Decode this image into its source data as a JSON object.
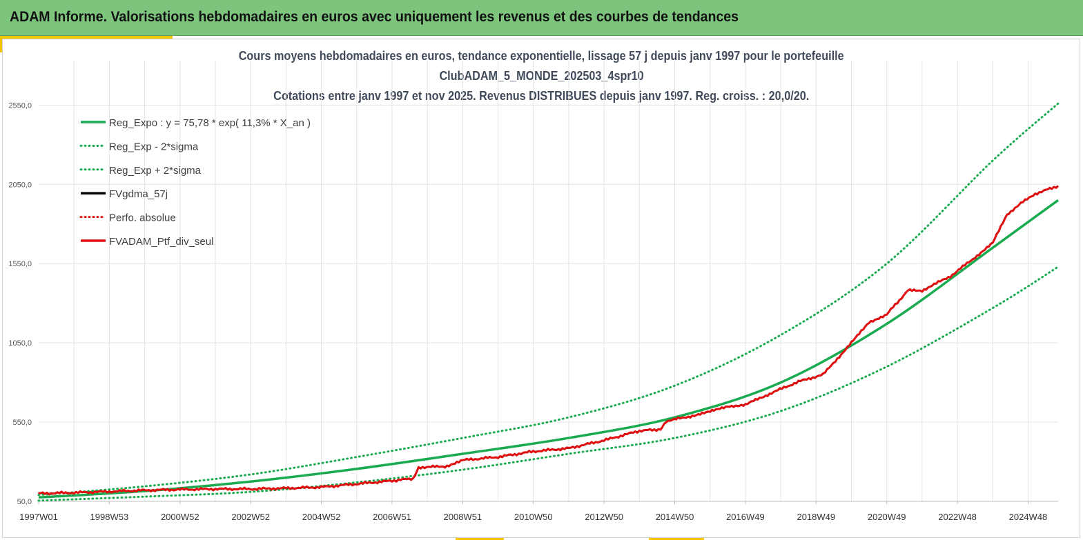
{
  "header": {
    "title": "ADAM Informe. Valorisations hebdomadaires en euros avec uniquement les revenus et des courbes de tendances"
  },
  "colors": {
    "banner": "#7dc47d",
    "accent": "#f2c200",
    "trend": "#1aaa50",
    "fv": "#000000",
    "ptf": "#e01010"
  },
  "chart_data": {
    "type": "line",
    "title_lines": [
      "Cours moyens hebdomadaires  en euros, tendance exponentielle, lissage 57 j depuis janv 1997 pour le portefeuille",
      "ClubADAM_5_MONDE_202503_4spr10",
      "Cotations  entre janv 1997 et nov 2025. Revenus DISTRIBUES depuis janv 1997. Reg. croiss. : 20,0/20."
    ],
    "x_tick_labels": [
      "1997W01",
      "1998W53",
      "2000W52",
      "2002W52",
      "2004W52",
      "2006W51",
      "2008W51",
      "2010W50",
      "2012W50",
      "2014W50",
      "2016W49",
      "2018W49",
      "2020W49",
      "2022W48",
      "2024W48"
    ],
    "x_tick_years": [
      1997,
      1999,
      2001,
      2003,
      2005,
      2007,
      2009,
      2011,
      2013,
      2015,
      2017,
      2019,
      2021,
      2023,
      2025
    ],
    "x_range": [
      1997.0,
      2025.85
    ],
    "y_ticks": [
      50,
      550,
      1050,
      1550,
      2050,
      2550
    ],
    "y_tick_labels": [
      "50,0",
      "550,0",
      "1050,0",
      "1550,0",
      "2050,0",
      "2550,0"
    ],
    "ylim": [
      50,
      2830
    ],
    "grid": true,
    "legend_position": "top-left",
    "legend": [
      {
        "label": "Reg_Expo : y = 75,78 * exp( 11,3% *  X_an )",
        "color": "#1aaa50",
        "style": "solid"
      },
      {
        "label": "Reg_Exp - 2*sigma",
        "color": "#1aaa50",
        "style": "dotted"
      },
      {
        "label": "Reg_Exp + 2*sigma",
        "color": "#1aaa50",
        "style": "dotted"
      },
      {
        "label": "FVgdma_57j",
        "color": "#000000",
        "style": "solid"
      },
      {
        "label": "Perfo. absolue",
        "color": "#e01010",
        "style": "dotted"
      },
      {
        "label": "FVADAM_Ptf_div_seul",
        "color": "#e01010",
        "style": "solid"
      }
    ],
    "series": [
      {
        "name": "Reg_Expo : y = 75,78 * exp( 11,3% *  X_an )",
        "x": [
          1997.0,
          2000.0,
          2003.0,
          2006.0,
          2009.0,
          2012.0,
          2015.0,
          2018.0,
          2021.0,
          2024.0,
          2025.85
        ],
        "y": [
          75,
          115,
          175,
          255,
          350,
          450,
          580,
          800,
          1170,
          1650,
          1950
        ]
      },
      {
        "name": "Reg_Exp - 2*sigma",
        "x": [
          1997.0,
          2000.0,
          2003.0,
          2006.0,
          2009.0,
          2012.0,
          2015.0,
          2018.0,
          2021.0,
          2024.0,
          2025.85
        ],
        "y": [
          55,
          80,
          110,
          170,
          250,
          350,
          450,
          620,
          900,
          1270,
          1530
        ]
      },
      {
        "name": "Reg_Exp + 2*sigma",
        "x": [
          1997.0,
          2000.0,
          2003.0,
          2006.0,
          2009.0,
          2012.0,
          2015.0,
          2018.0,
          2021.0,
          2024.0,
          2025.85
        ],
        "y": [
          90,
          145,
          220,
          330,
          450,
          580,
          780,
          1100,
          1550,
          2200,
          2560
        ]
      },
      {
        "name": "FVgdma_57j",
        "x": [
          1997.0,
          1998.0,
          1999.0,
          2000.0,
          2001.0,
          2002.0,
          2003.0,
          2004.0,
          2005.0,
          2006.0,
          2007.0,
          2007.6,
          2007.75,
          2008.5,
          2009.0,
          2010.0,
          2011.0,
          2012.0,
          2013.0,
          2014.0,
          2014.6,
          2014.75,
          2015.5,
          2016.0,
          2016.5,
          2017.0,
          2017.8,
          2018.5,
          2019.2,
          2020.0,
          2020.5,
          2021.0,
          2021.6,
          2022.0,
          2022.8,
          2023.5,
          2024.0,
          2024.4,
          2024.8,
          2025.2,
          2025.85
        ],
        "y": [
          100,
          105,
          112,
          120,
          125,
          128,
          128,
          133,
          140,
          160,
          180,
          195,
          265,
          270,
          310,
          330,
          365,
          385,
          435,
          495,
          505,
          555,
          590,
          615,
          650,
          660,
          740,
          805,
          850,
          1050,
          1180,
          1230,
          1380,
          1380,
          1470,
          1590,
          1680,
          1860,
          1930,
          1990,
          2040
        ]
      },
      {
        "name": "Perfo. absolue",
        "x": [
          1997.0,
          1998.0,
          1999.0,
          2000.0,
          2001.0,
          2002.0,
          2003.0,
          2004.0,
          2005.0,
          2006.0,
          2007.0,
          2007.6,
          2007.75,
          2008.5,
          2009.0,
          2010.0,
          2011.0,
          2012.0,
          2013.0,
          2014.0,
          2014.6,
          2014.75,
          2015.5,
          2016.0,
          2016.5,
          2017.0,
          2017.8,
          2018.5,
          2019.2,
          2020.0,
          2020.5,
          2021.0,
          2021.6,
          2022.0,
          2022.8,
          2023.5,
          2024.0,
          2024.4,
          2024.8,
          2025.2,
          2025.85
        ],
        "y": [
          100,
          105,
          112,
          120,
          125,
          128,
          128,
          133,
          140,
          160,
          180,
          195,
          265,
          270,
          310,
          330,
          365,
          385,
          435,
          495,
          505,
          555,
          590,
          615,
          650,
          660,
          740,
          805,
          850,
          1050,
          1180,
          1230,
          1380,
          1380,
          1470,
          1590,
          1680,
          1860,
          1930,
          1990,
          2040
        ]
      },
      {
        "name": "FVADAM_Ptf_div_seul",
        "x": [
          1997.0,
          1998.0,
          1999.0,
          2000.0,
          2001.0,
          2002.0,
          2003.0,
          2004.0,
          2005.0,
          2006.0,
          2007.0,
          2007.6,
          2007.75,
          2008.5,
          2009.0,
          2010.0,
          2011.0,
          2012.0,
          2013.0,
          2014.0,
          2014.6,
          2014.75,
          2015.5,
          2016.0,
          2016.5,
          2017.0,
          2017.8,
          2018.5,
          2019.2,
          2020.0,
          2020.5,
          2021.0,
          2021.6,
          2022.0,
          2022.8,
          2023.5,
          2024.0,
          2024.4,
          2024.8,
          2025.2,
          2025.85
        ],
        "y": [
          100,
          105,
          112,
          120,
          125,
          128,
          128,
          133,
          140,
          160,
          180,
          195,
          265,
          270,
          310,
          330,
          365,
          385,
          435,
          495,
          505,
          555,
          590,
          615,
          650,
          660,
          740,
          805,
          850,
          1050,
          1180,
          1230,
          1380,
          1380,
          1470,
          1590,
          1680,
          1860,
          1930,
          1990,
          2040
        ]
      }
    ]
  }
}
